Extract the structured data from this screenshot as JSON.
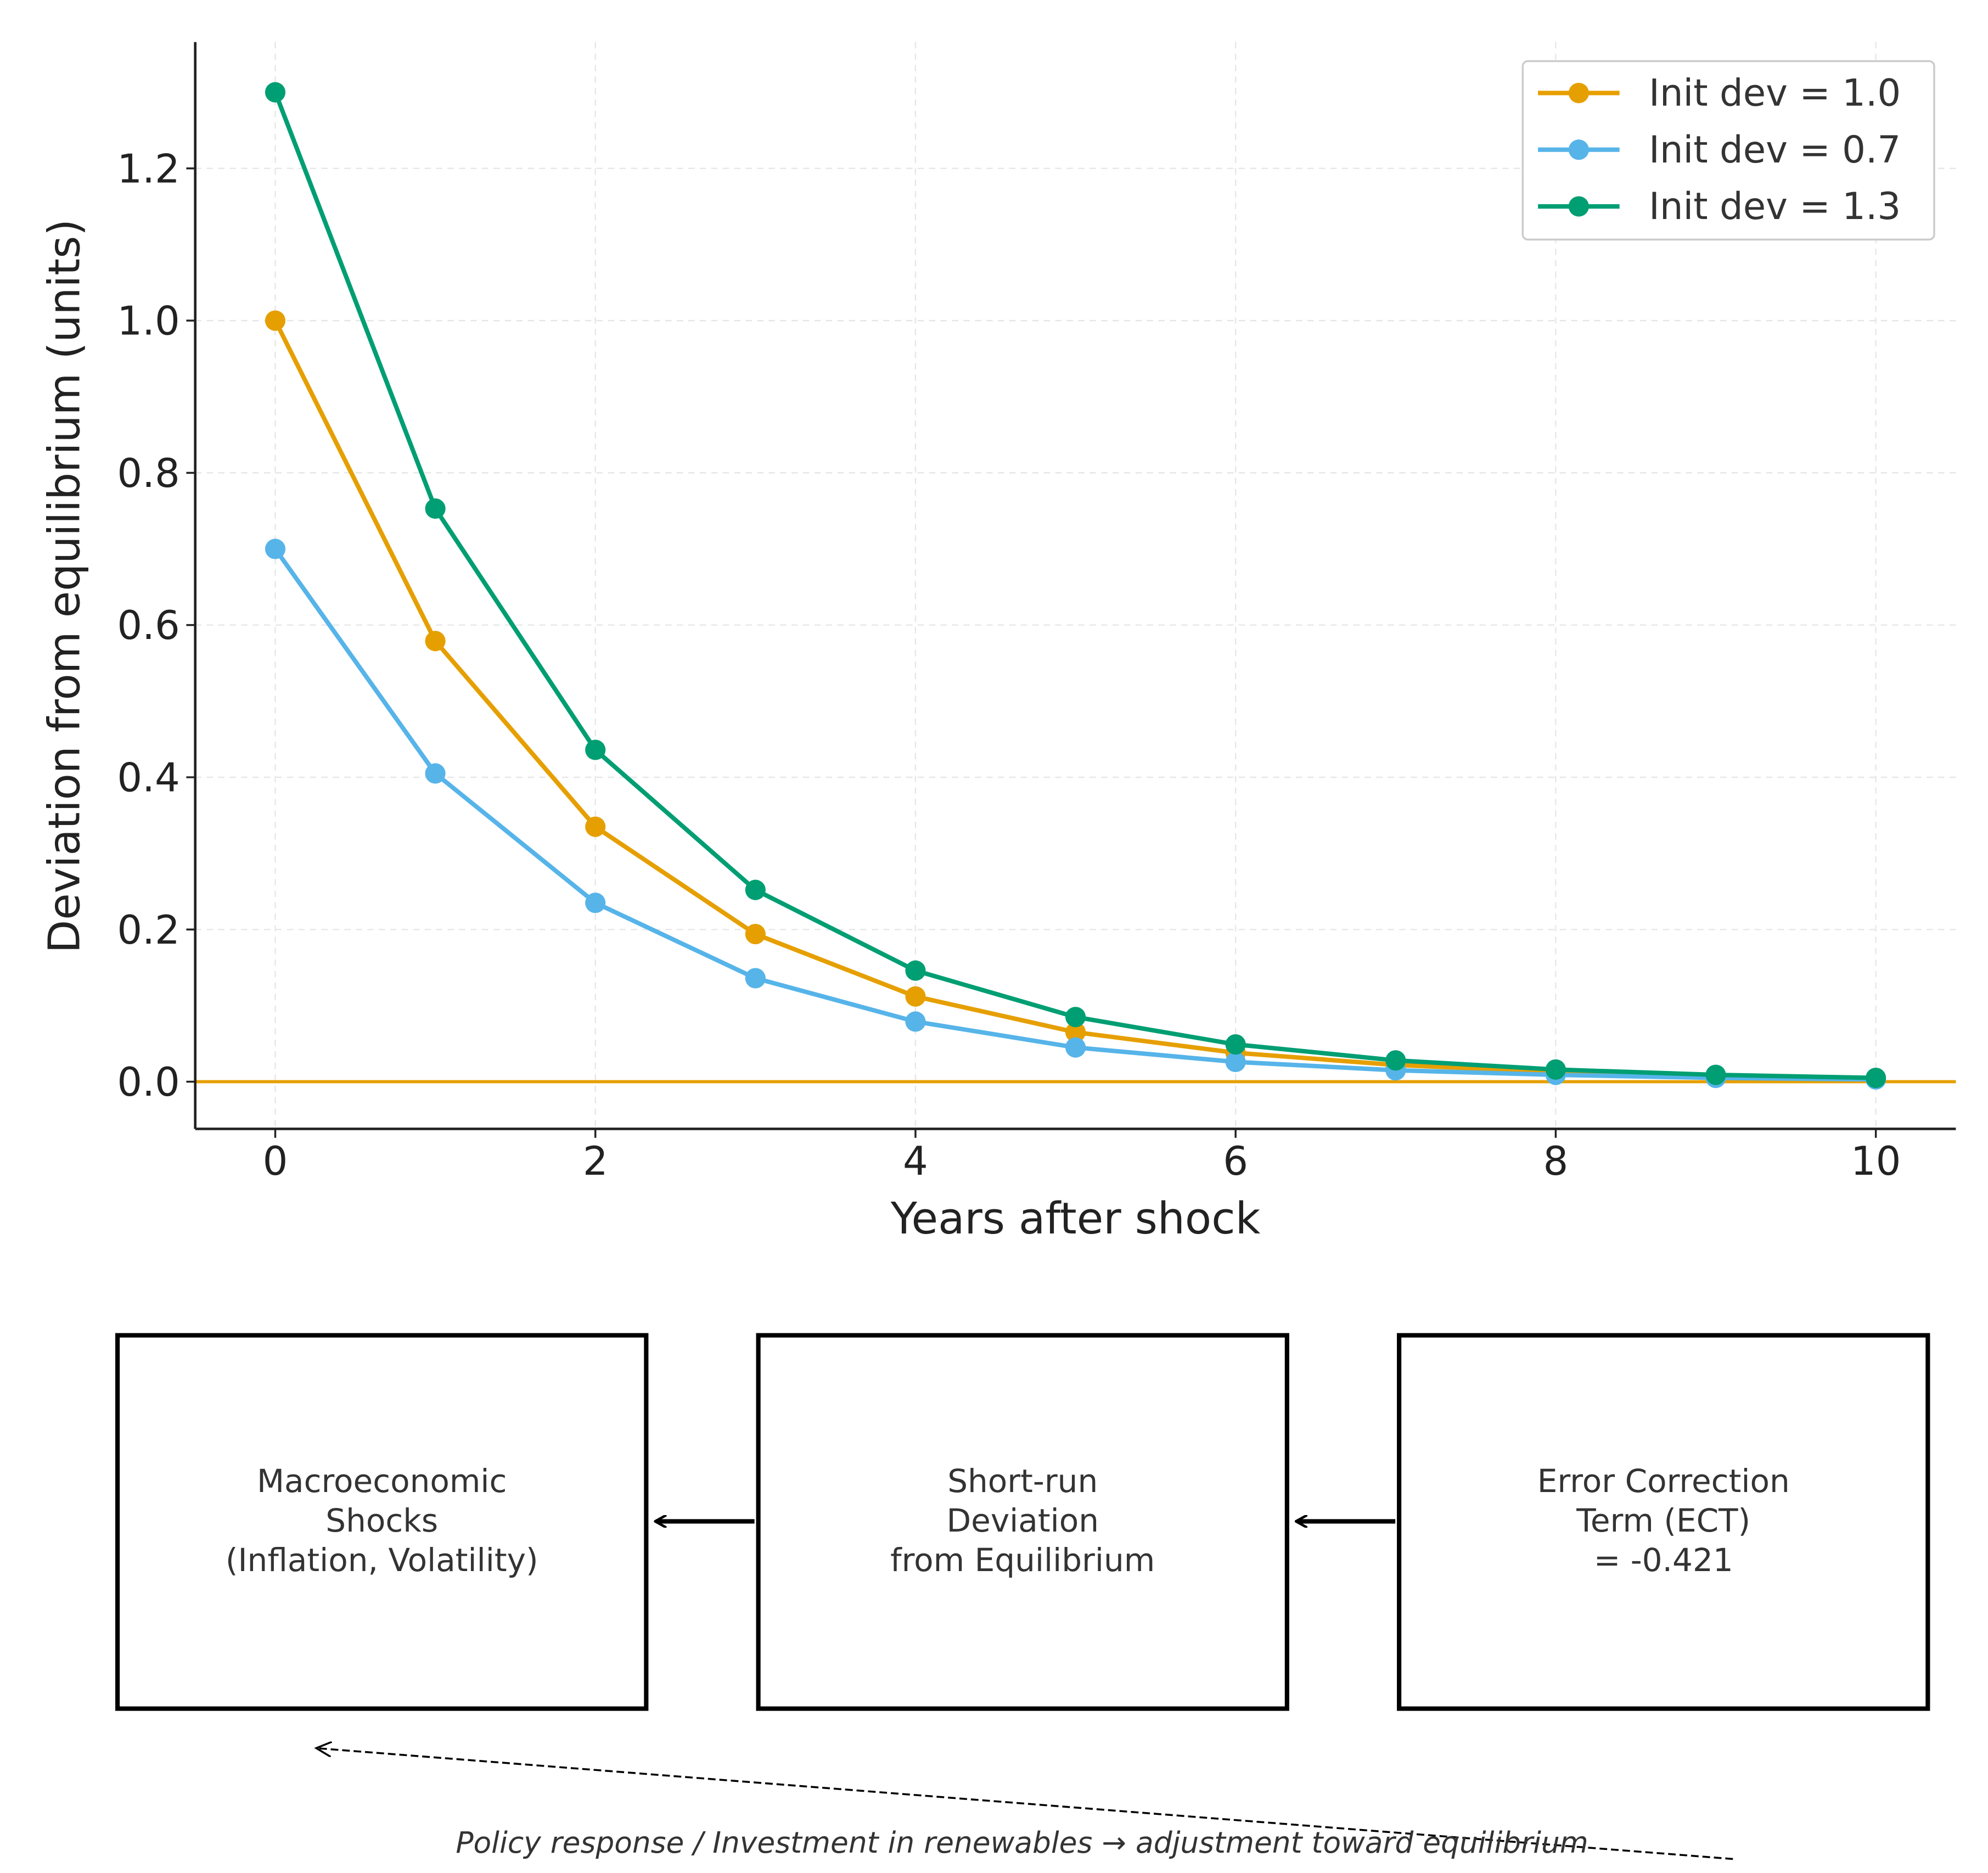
{
  "chart_data": {
    "type": "line",
    "title": "",
    "xlabel": "Years after shock",
    "ylabel": "Deviation from equilibrium (units)",
    "xlim": [
      -0.5,
      10.5
    ],
    "ylim": [
      -0.062,
      1.366
    ],
    "xticks": [
      0,
      2,
      4,
      6,
      8,
      10
    ],
    "xtick_labels": [
      "0",
      "2",
      "4",
      "6",
      "8",
      "10"
    ],
    "yticks": [
      0.0,
      0.2,
      0.4,
      0.6,
      0.8,
      1.0,
      1.2
    ],
    "ytick_labels": [
      "0.0",
      "0.2",
      "0.4",
      "0.6",
      "0.8",
      "1.0",
      "1.2"
    ],
    "grid": true,
    "legend_position": "top-right",
    "x": [
      0,
      1,
      2,
      3,
      4,
      5,
      6,
      7,
      8,
      9,
      10
    ],
    "series": [
      {
        "name": "Init dev = 1.0",
        "color": "#E69F00",
        "values": [
          1.0,
          0.579,
          0.335,
          0.194,
          0.112,
          0.065,
          0.038,
          0.022,
          0.013,
          0.007,
          0.004
        ]
      },
      {
        "name": "Init dev = 0.7",
        "color": "#56B4E9",
        "values": [
          0.7,
          0.405,
          0.235,
          0.136,
          0.079,
          0.045,
          0.026,
          0.015,
          0.009,
          0.005,
          0.003
        ]
      },
      {
        "name": "Init dev = 1.3",
        "color": "#009E73",
        "values": [
          1.3,
          0.753,
          0.436,
          0.252,
          0.146,
          0.085,
          0.049,
          0.028,
          0.016,
          0.009,
          0.005
        ]
      }
    ],
    "reference_line": {
      "y": 0.0,
      "color": "#E69F00"
    }
  },
  "diagram": {
    "boxes": [
      {
        "lines": [
          "Macroeconomic",
          "Shocks",
          "(Inflation, Volatility)"
        ]
      },
      {
        "lines": [
          "Short-run",
          "Deviation",
          "from Equilibrium"
        ]
      },
      {
        "lines": [
          "Error Correction",
          "Term (ECT)",
          "= -0.421"
        ]
      }
    ],
    "caption": "Policy response / Investment in renewables → adjustment toward equilibrium"
  }
}
